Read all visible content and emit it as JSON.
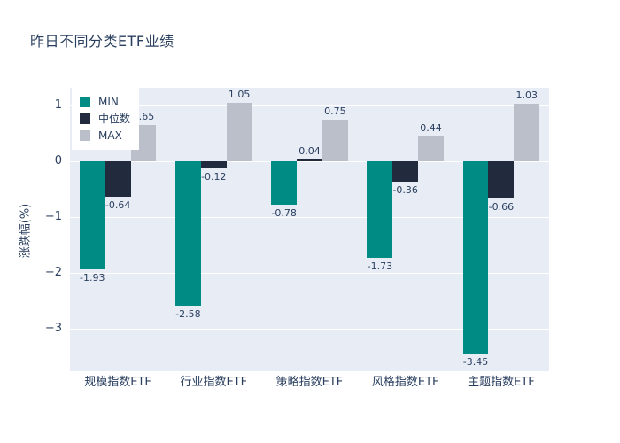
{
  "chart_data": {
    "type": "bar",
    "title": "昨日不同分类ETF业绩",
    "xlabel": "",
    "ylabel": "涨跌幅(%)",
    "categories": [
      "规模指数ETF",
      "行业指数ETF",
      "策略指数ETF",
      "风格指数ETF",
      "主题指数ETF"
    ],
    "series": [
      {
        "name": "MIN",
        "color": "#008C84",
        "values": [
          -1.93,
          -2.58,
          -0.78,
          -1.73,
          -3.45
        ]
      },
      {
        "name": "中位数",
        "color": "#222B3D",
        "values": [
          -0.64,
          -0.12,
          0.04,
          -0.36,
          -0.66
        ]
      },
      {
        "name": "MAX",
        "color": "#BABFC9",
        "values": [
          0.65,
          1.05,
          0.75,
          0.44,
          1.03
        ]
      }
    ],
    "value_labels_shown": true,
    "ytick_values": [
      1,
      0,
      -1,
      -2,
      -3
    ],
    "ytick_labels": [
      "1",
      "0",
      "−1",
      "−2",
      "−3"
    ],
    "ylim": [
      -3.76,
      1.32
    ],
    "grid": true,
    "legend_position": "top-left-inside",
    "colors": {
      "plot_bg": "#E7ECF5",
      "grid": "#FFFFFF",
      "font": "#2A3F5F",
      "page_bg": "#FFFFFF"
    }
  }
}
